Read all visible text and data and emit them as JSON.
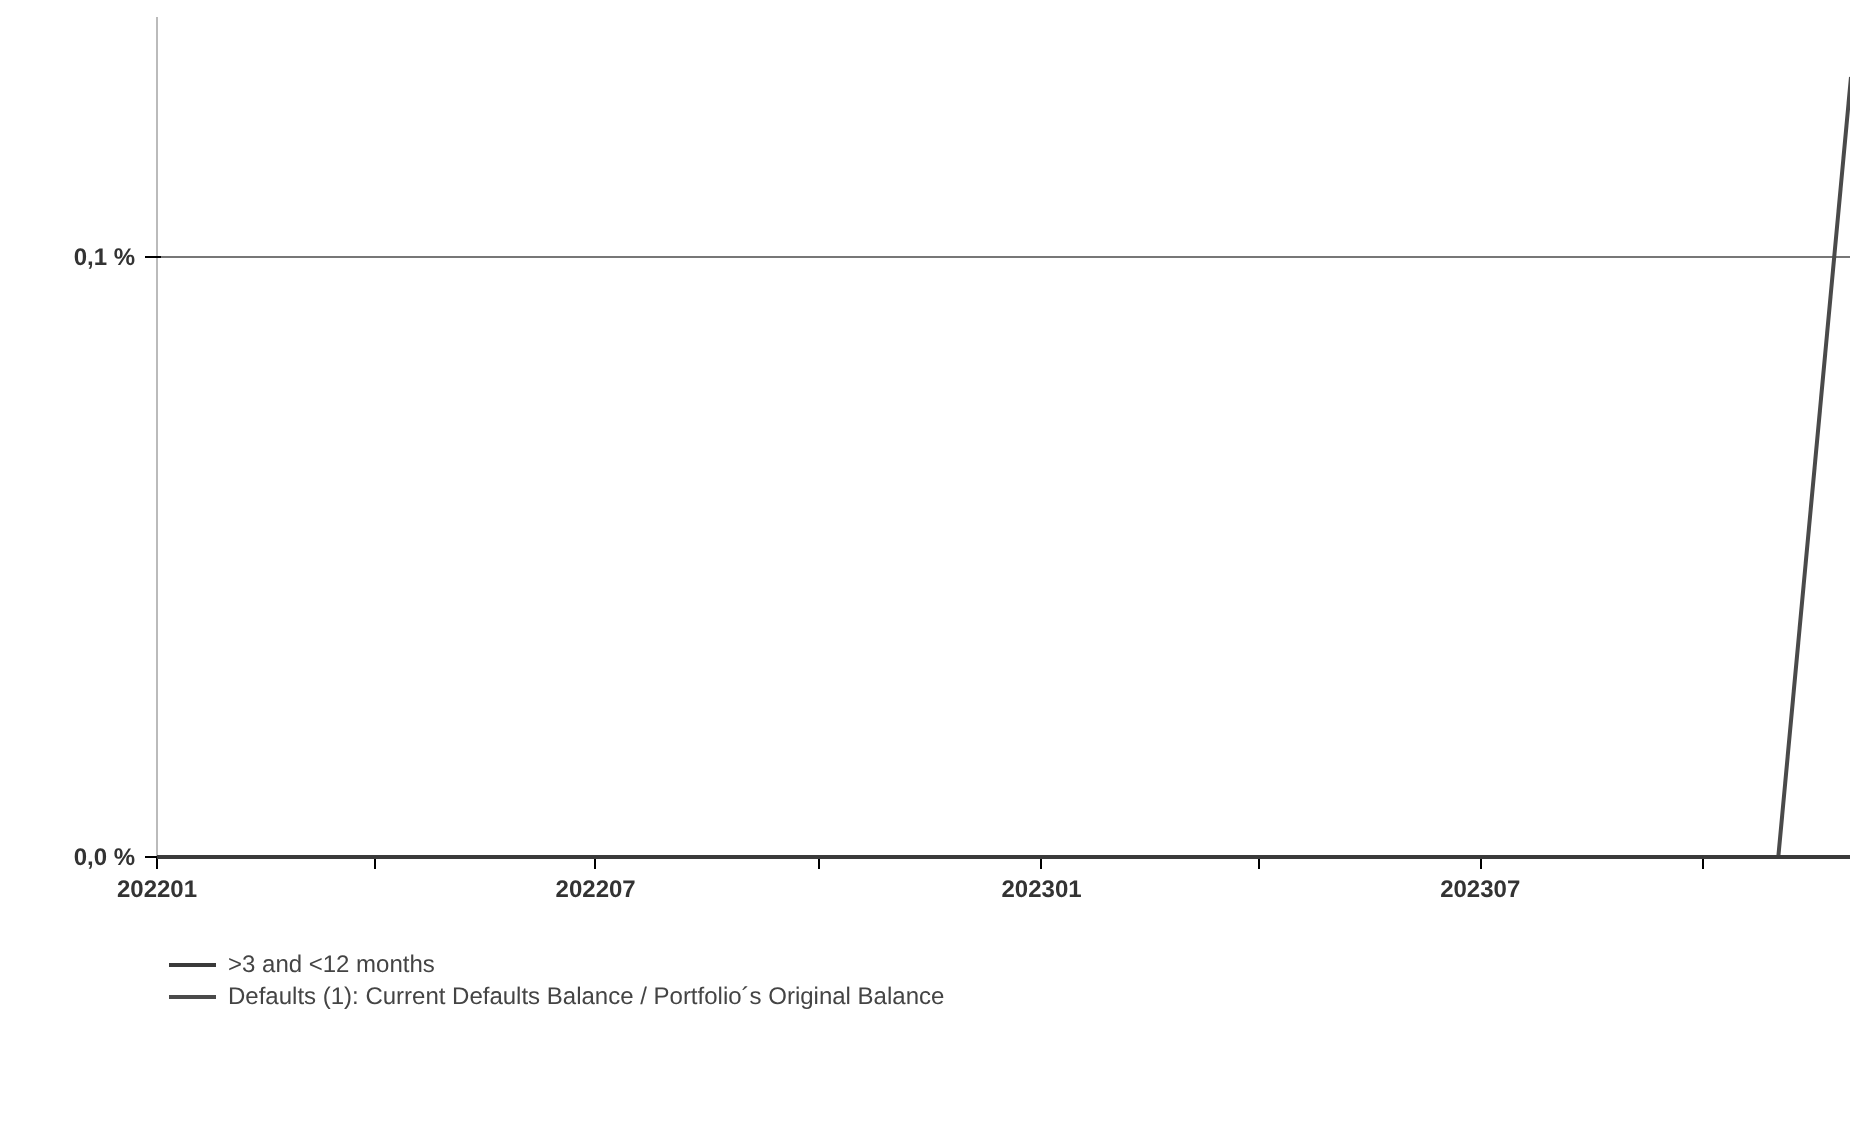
{
  "chart_data": {
    "type": "line",
    "x": [
      "2022-01",
      "2022-02",
      "2022-03",
      "2022-04",
      "2022-05",
      "2022-06",
      "2022-07",
      "2022-08",
      "2022-09",
      "2022-10",
      "2022-11",
      "2022-12",
      "2023-01",
      "2023-02",
      "2023-03",
      "2023-04",
      "2023-05",
      "2023-06",
      "2023-07",
      "2023-08",
      "2023-09",
      "2023-10",
      "2023-11",
      "2023-12"
    ],
    "series": [
      {
        "name": ">3 and <12 months",
        "color": "#3a3a3a",
        "values": [
          0,
          0,
          0,
          0,
          0,
          0,
          0,
          0,
          0,
          0,
          0,
          0,
          0,
          0,
          0,
          0,
          0,
          0,
          0,
          0,
          0,
          0,
          0,
          0
        ]
      },
      {
        "name": "Defaults (1): Current Defaults Balance / Portfolio´s Original Balance",
        "color": "#4a4a4a",
        "values": [
          null,
          null,
          null,
          null,
          null,
          null,
          null,
          null,
          null,
          null,
          null,
          null,
          null,
          null,
          null,
          null,
          null,
          null,
          null,
          null,
          null,
          null,
          0,
          0.13
        ]
      }
    ],
    "xlim": [
      "2022-01",
      "2023-12"
    ],
    "xticks": [
      {
        "value": "2022-01",
        "label": "202201"
      },
      {
        "value": "2022-04",
        "label": null
      },
      {
        "value": "2022-07",
        "label": "202207"
      },
      {
        "value": "2022-10",
        "label": null
      },
      {
        "value": "2023-01",
        "label": "202301"
      },
      {
        "value": "2023-04",
        "label": null
      },
      {
        "value": "2023-07",
        "label": "202307"
      },
      {
        "value": "2023-10",
        "label": null
      }
    ],
    "ylim": [
      0,
      0.14
    ],
    "yticks": [
      {
        "value": 0,
        "label": "0,0 %"
      },
      {
        "value": 0.1,
        "label": "0,1 %"
      }
    ],
    "grid": "y",
    "legend": "bottom left",
    "line_style": "solid",
    "marker": "none"
  }
}
